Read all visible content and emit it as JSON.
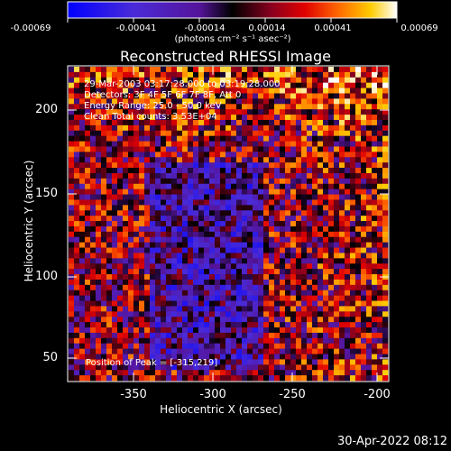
{
  "colorbar": {
    "ticks": [
      "-0.00069",
      "-0.00041",
      "-0.00014",
      "0.00014",
      "0.00041",
      "0.00069"
    ],
    "unit_label": "(photons cm⁻² s⁻¹ asec⁻²)",
    "min": -0.00069,
    "max": 0.00069
  },
  "title": "Reconstructed RHESSI Image",
  "info_lines": [
    "29-Mar-2003 03:17:28.000 to 03:19:28.000",
    "Detectors: 3F 4F 5F 6F 7F 8F, Att 0",
    "Energy Range: 25.0 - 50.0 keV",
    "Clean     Total counts: 3.53E+04"
  ],
  "peak_text": "Position of Peak = [-315,219]",
  "axes": {
    "xlabel": "Heliocentric X (arcsec)",
    "ylabel": "Heliocentric Y (arcsec)",
    "xticks": [
      "-350",
      "-300",
      "-250",
      "-200"
    ],
    "yticks": [
      "200",
      "150",
      "100",
      "50"
    ],
    "xlim": [
      -385,
      -195
    ],
    "ylim": [
      33,
      227
    ]
  },
  "footer_date": "30-Apr-2022 08:12",
  "colors": {
    "background": "#000000",
    "text": "#ffffff"
  }
}
